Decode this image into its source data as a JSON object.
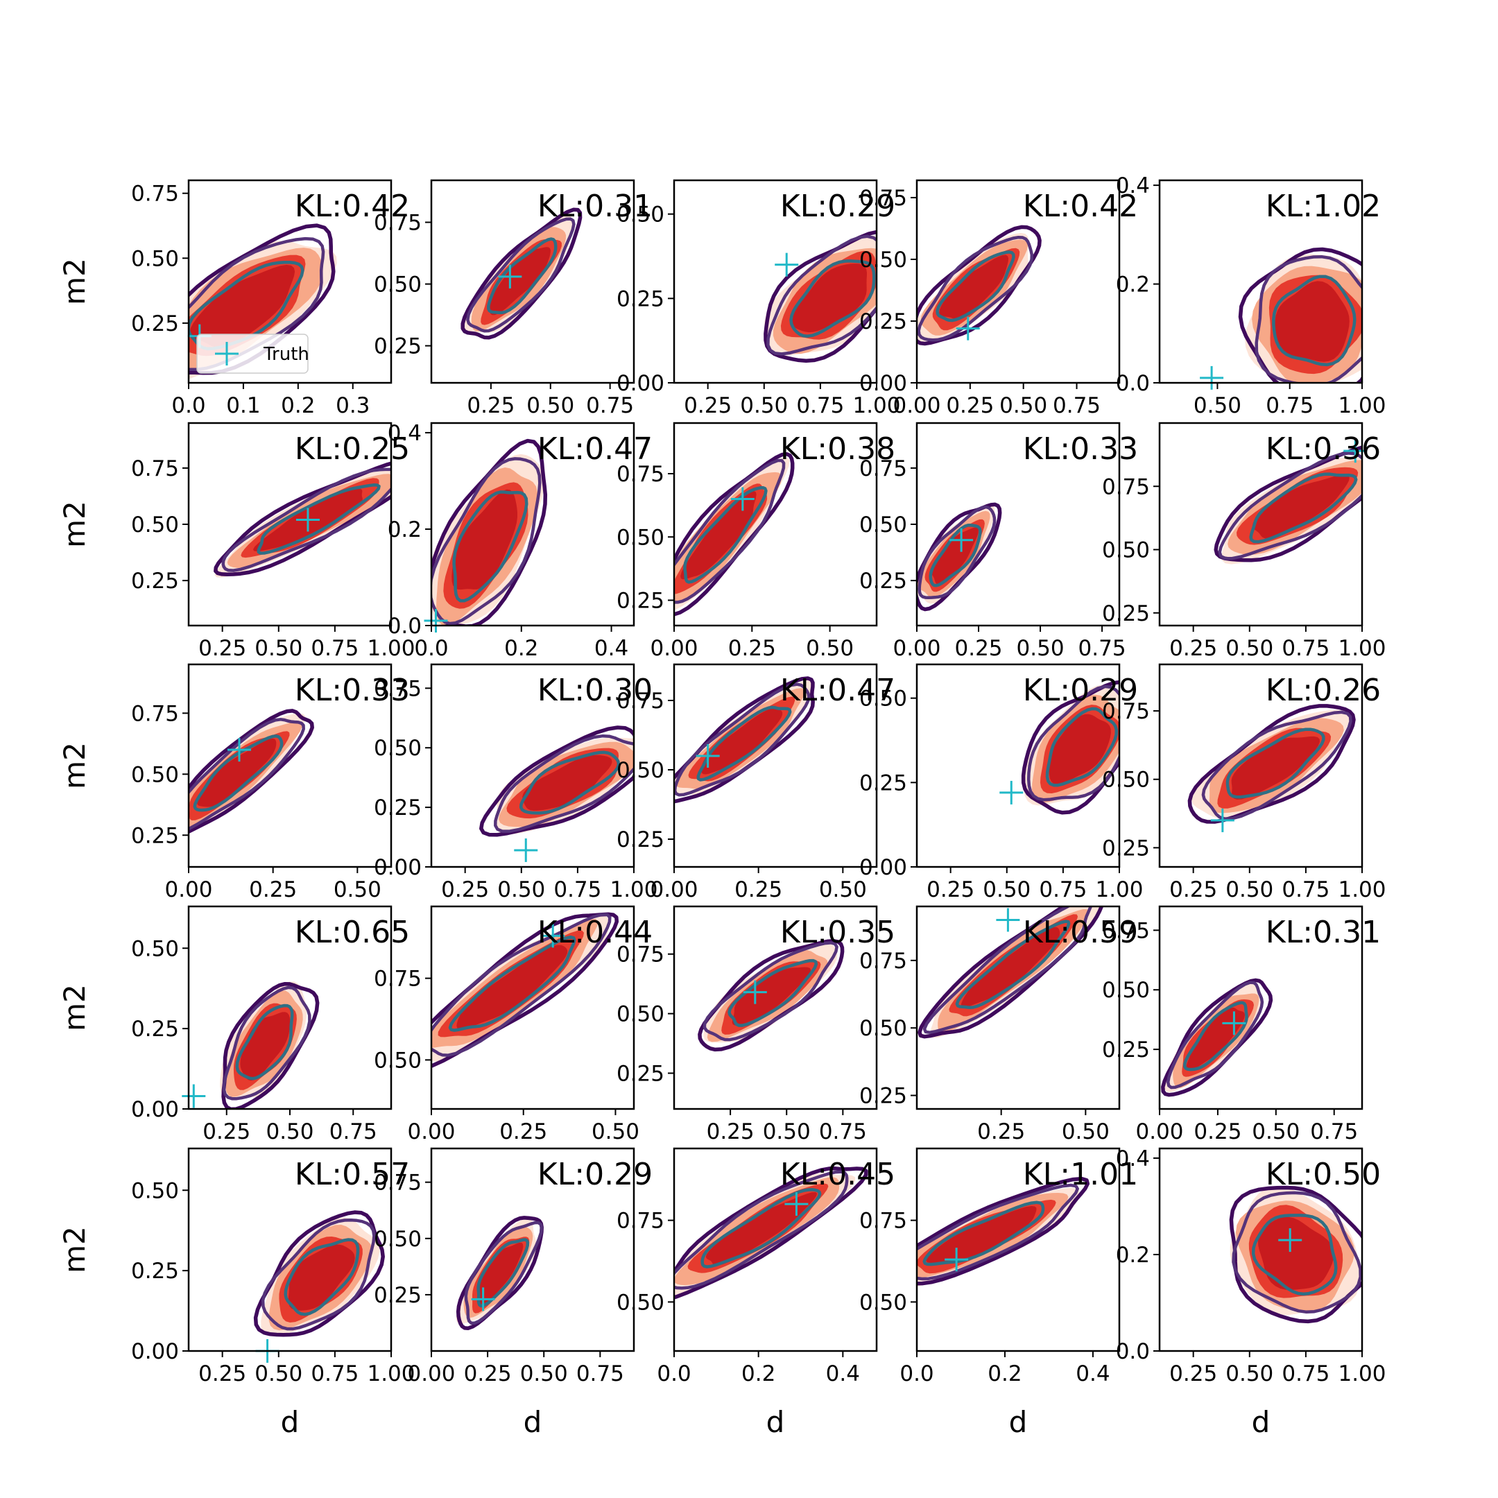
{
  "figure": {
    "legend": {
      "label": "Truth",
      "placement": "lower-left of first panel"
    },
    "colors": {
      "fill_levels": [
        "#fde4d8",
        "#f7a888",
        "#e63b2e",
        "#c81b1e"
      ],
      "contour_outer": "#3f0a5c",
      "contour_mid": "#55337a",
      "contour_inner": "#2f6f85",
      "truth_marker": "#22b9c8"
    }
  },
  "chart_data": [
    {
      "type": "contour",
      "panel": [
        1,
        1
      ],
      "annotation": "KL:0.42",
      "ylabel": "m2",
      "xlabel": "",
      "xticks": [
        "0.0",
        "0.1",
        "0.2",
        "0.3"
      ],
      "yticks": [
        "0.25",
        "0.50",
        "0.75"
      ],
      "xlim": [
        0,
        0.37
      ],
      "ylim": [
        0.02,
        0.8
      ],
      "truth": [
        0.02,
        0.2
      ],
      "center": [
        0.1,
        0.31
      ],
      "spread": [
        0.16,
        0.14
      ],
      "angle": 35,
      "legend": true
    },
    {
      "type": "contour",
      "panel": [
        1,
        2
      ],
      "annotation": "KL:0.31",
      "ylabel": "",
      "xlabel": "",
      "xticks": [
        "0.25",
        "0.50",
        "0.75"
      ],
      "yticks": [
        "0.25",
        "0.50",
        "0.75"
      ],
      "xlim": [
        0,
        0.85
      ],
      "ylim": [
        0.1,
        0.92
      ],
      "truth": [
        0.33,
        0.53
      ],
      "center": [
        0.37,
        0.52
      ],
      "spread": [
        0.27,
        0.08
      ],
      "angle": 48
    },
    {
      "type": "contour",
      "panel": [
        1,
        3
      ],
      "annotation": "KL:0.29",
      "ylabel": "",
      "xlabel": "",
      "xticks": [
        "0.25",
        "0.50",
        "0.75",
        "1.00"
      ],
      "yticks": [
        "0.00",
        "0.25",
        "0.50"
      ],
      "xlim": [
        0.1,
        1
      ],
      "ylim": [
        0,
        0.6
      ],
      "truth": [
        0.6,
        0.35
      ],
      "center": [
        0.8,
        0.25
      ],
      "spread": [
        0.3,
        0.1
      ],
      "angle": 40
    },
    {
      "type": "contour",
      "panel": [
        1,
        4
      ],
      "annotation": "KL:0.42",
      "ylabel": "",
      "xlabel": "",
      "xticks": [
        "0.00",
        "0.25",
        "0.50",
        "0.75"
      ],
      "yticks": [
        "0.00",
        "0.25",
        "0.50",
        "0.75"
      ],
      "xlim": [
        0,
        0.95
      ],
      "ylim": [
        0,
        0.82
      ],
      "truth": [
        0.24,
        0.22
      ],
      "center": [
        0.27,
        0.38
      ],
      "spread": [
        0.3,
        0.09
      ],
      "angle": 42
    },
    {
      "type": "contour",
      "panel": [
        1,
        5
      ],
      "annotation": "KL:1.02",
      "ylabel": "",
      "xlabel": "",
      "xticks": [
        "0.50",
        "0.75",
        "1.00"
      ],
      "yticks": [
        "0.0",
        "0.2",
        "0.4"
      ],
      "xlim": [
        0.3,
        1
      ],
      "ylim": [
        0,
        0.41
      ],
      "truth": [
        0.48,
        0.01
      ],
      "center": [
        0.83,
        0.12
      ],
      "spread": [
        0.2,
        0.11
      ],
      "angle": 70
    },
    {
      "type": "contour",
      "panel": [
        2,
        1
      ],
      "annotation": "KL:0.25",
      "ylabel": "m2",
      "xlabel": "",
      "xticks": [
        "0.25",
        "0.50",
        "0.75",
        "1.00"
      ],
      "yticks": [
        "0.25",
        "0.50",
        "0.75"
      ],
      "xlim": [
        0.1,
        1
      ],
      "ylim": [
        0.05,
        0.95
      ],
      "truth": [
        0.63,
        0.52
      ],
      "center": [
        0.65,
        0.52
      ],
      "spread": [
        0.4,
        0.08
      ],
      "angle": 28
    },
    {
      "type": "contour",
      "panel": [
        2,
        2
      ],
      "annotation": "KL:0.47",
      "ylabel": "",
      "xlabel": "",
      "xticks": [
        "0.0",
        "0.2",
        "0.4"
      ],
      "yticks": [
        "0.0",
        "0.2",
        "0.4"
      ],
      "xlim": [
        0,
        0.45
      ],
      "ylim": [
        0,
        0.42
      ],
      "truth": [
        0.01,
        0.01
      ],
      "center": [
        0.12,
        0.17
      ],
      "spread": [
        0.18,
        0.07
      ],
      "angle": 62
    },
    {
      "type": "contour",
      "panel": [
        2,
        3
      ],
      "annotation": "KL:0.38",
      "ylabel": "",
      "xlabel": "",
      "xticks": [
        "0.00",
        "0.25",
        "0.50"
      ],
      "yticks": [
        "0.25",
        "0.50",
        "0.75"
      ],
      "xlim": [
        0,
        0.65
      ],
      "ylim": [
        0.15,
        0.95
      ],
      "truth": [
        0.22,
        0.65
      ],
      "center": [
        0.15,
        0.5
      ],
      "spread": [
        0.26,
        0.08
      ],
      "angle": 50
    },
    {
      "type": "contour",
      "panel": [
        2,
        4
      ],
      "annotation": "KL:0.33",
      "ylabel": "",
      "xlabel": "",
      "xticks": [
        "0.00",
        "0.25",
        "0.50",
        "0.75"
      ],
      "yticks": [
        "0.25",
        "0.50",
        "0.75"
      ],
      "xlim": [
        0,
        0.82
      ],
      "ylim": [
        0.05,
        0.95
      ],
      "truth": [
        0.18,
        0.43
      ],
      "center": [
        0.15,
        0.36
      ],
      "spread": [
        0.2,
        0.08
      ],
      "angle": 52
    },
    {
      "type": "contour",
      "panel": [
        2,
        5
      ],
      "annotation": "KL:0.36",
      "ylabel": "",
      "xlabel": "",
      "xticks": [
        "0.25",
        "0.50",
        "0.75",
        "1.00"
      ],
      "yticks": [
        "0.25",
        "0.50",
        "0.75"
      ],
      "xlim": [
        0.1,
        1
      ],
      "ylim": [
        0.2,
        1
      ],
      "truth": [
        0.97,
        0.89
      ],
      "center": [
        0.72,
        0.67
      ],
      "spread": [
        0.35,
        0.1
      ],
      "angle": 30
    },
    {
      "type": "contour",
      "panel": [
        3,
        1
      ],
      "annotation": "KL:0.33",
      "ylabel": "m2",
      "xlabel": "",
      "xticks": [
        "0.00",
        "0.25",
        "0.50"
      ],
      "yticks": [
        "0.25",
        "0.50",
        "0.75"
      ],
      "xlim": [
        0,
        0.6
      ],
      "ylim": [
        0.12,
        0.95
      ],
      "truth": [
        0.15,
        0.6
      ],
      "center": [
        0.14,
        0.5
      ],
      "spread": [
        0.22,
        0.08
      ],
      "angle": 40
    },
    {
      "type": "contour",
      "panel": [
        3,
        2
      ],
      "annotation": "KL:0.30",
      "ylabel": "",
      "xlabel": "",
      "xticks": [
        "0.25",
        "0.50",
        "0.75",
        "1.00"
      ],
      "yticks": [
        "0.00",
        "0.25",
        "0.50",
        "0.75"
      ],
      "xlim": [
        0.1,
        1
      ],
      "ylim": [
        0,
        0.85
      ],
      "truth": [
        0.52,
        0.07
      ],
      "center": [
        0.7,
        0.35
      ],
      "spread": [
        0.32,
        0.11
      ],
      "angle": 28
    },
    {
      "type": "contour",
      "panel": [
        3,
        3
      ],
      "annotation": "KL:0.47",
      "ylabel": "",
      "xlabel": "",
      "xticks": [
        "0.00",
        "0.25",
        "0.50"
      ],
      "yticks": [
        "0.25",
        "0.50",
        "0.75"
      ],
      "xlim": [
        0,
        0.6
      ],
      "ylim": [
        0.15,
        0.88
      ],
      "truth": [
        0.1,
        0.55
      ],
      "center": [
        0.2,
        0.6
      ],
      "spread": [
        0.22,
        0.07
      ],
      "angle": 38
    },
    {
      "type": "contour",
      "panel": [
        3,
        4
      ],
      "annotation": "KL:0.29",
      "ylabel": "",
      "xlabel": "",
      "xticks": [
        "0.25",
        "0.50",
        "0.75",
        "1.00"
      ],
      "yticks": [
        "0.00",
        "0.25",
        "0.50"
      ],
      "xlim": [
        0.1,
        1
      ],
      "ylim": [
        0,
        0.6
      ],
      "truth": [
        0.52,
        0.22
      ],
      "center": [
        0.82,
        0.35
      ],
      "spread": [
        0.26,
        0.1
      ],
      "angle": 50
    },
    {
      "type": "contour",
      "panel": [
        3,
        5
      ],
      "annotation": "KL:0.26",
      "ylabel": "",
      "xlabel": "",
      "xticks": [
        "0.25",
        "0.50",
        "0.75",
        "1.00"
      ],
      "yticks": [
        "0.25",
        "0.50",
        "0.75"
      ],
      "xlim": [
        0.1,
        1
      ],
      "ylim": [
        0.18,
        0.92
      ],
      "truth": [
        0.38,
        0.35
      ],
      "center": [
        0.6,
        0.55
      ],
      "spread": [
        0.33,
        0.1
      ],
      "angle": 32
    },
    {
      "type": "contour",
      "panel": [
        4,
        1
      ],
      "annotation": "KL:0.65",
      "ylabel": "m2",
      "xlabel": "",
      "xticks": [
        "0.25",
        "0.50",
        "0.75"
      ],
      "yticks": [
        "0.00",
        "0.25",
        "0.50"
      ],
      "xlim": [
        0.1,
        0.9
      ],
      "ylim": [
        0,
        0.63
      ],
      "truth": [
        0.12,
        0.04
      ],
      "center": [
        0.4,
        0.2
      ],
      "spread": [
        0.22,
        0.08
      ],
      "angle": 58
    },
    {
      "type": "contour",
      "panel": [
        4,
        2
      ],
      "annotation": "KL:0.44",
      "ylabel": "",
      "xlabel": "",
      "xticks": [
        "0.00",
        "0.25",
        "0.50"
      ],
      "yticks": [
        "0.50",
        "0.75"
      ],
      "xlim": [
        0,
        0.55
      ],
      "ylim": [
        0.35,
        0.97
      ],
      "truth": [
        0.33,
        0.88
      ],
      "center": [
        0.22,
        0.72
      ],
      "spread": [
        0.27,
        0.07
      ],
      "angle": 36
    },
    {
      "type": "contour",
      "panel": [
        4,
        3
      ],
      "annotation": "KL:0.35",
      "ylabel": "",
      "xlabel": "",
      "xticks": [
        "0.25",
        "0.50",
        "0.75"
      ],
      "yticks": [
        "0.25",
        "0.50",
        "0.75"
      ],
      "xlim": [
        0,
        0.9
      ],
      "ylim": [
        0.1,
        0.95
      ],
      "truth": [
        0.36,
        0.59
      ],
      "center": [
        0.42,
        0.58
      ],
      "spread": [
        0.3,
        0.09
      ],
      "angle": 35
    },
    {
      "type": "contour",
      "panel": [
        4,
        4
      ],
      "annotation": "KL:0.59",
      "ylabel": "",
      "xlabel": "",
      "xticks": [
        "0.25",
        "0.50"
      ],
      "yticks": [
        "0.25",
        "0.50",
        "0.75"
      ],
      "xlim": [
        0,
        0.6
      ],
      "ylim": [
        0.2,
        0.95
      ],
      "truth": [
        0.27,
        0.9
      ],
      "center": [
        0.28,
        0.72
      ],
      "spread": [
        0.27,
        0.07
      ],
      "angle": 38
    },
    {
      "type": "contour",
      "panel": [
        4,
        5
      ],
      "annotation": "KL:0.31",
      "ylabel": "",
      "xlabel": "",
      "xticks": [
        "0.00",
        "0.25",
        "0.50",
        "0.75"
      ],
      "yticks": [
        "0.25",
        "0.50",
        "0.75"
      ],
      "xlim": [
        0,
        0.87
      ],
      "ylim": [
        0,
        0.85
      ],
      "truth": [
        0.32,
        0.36
      ],
      "center": [
        0.24,
        0.3
      ],
      "spread": [
        0.25,
        0.08
      ],
      "angle": 48
    },
    {
      "type": "contour",
      "panel": [
        5,
        1
      ],
      "annotation": "KL:0.57",
      "ylabel": "m2",
      "xlabel": "d",
      "xticks": [
        "0.25",
        "0.50",
        "0.75",
        "1.00"
      ],
      "yticks": [
        "0.00",
        "0.25",
        "0.50"
      ],
      "xlim": [
        0.1,
        1
      ],
      "ylim": [
        0,
        0.63
      ],
      "truth": [
        0.45,
        0.0
      ],
      "center": [
        0.68,
        0.23
      ],
      "spread": [
        0.27,
        0.1
      ],
      "angle": 45
    },
    {
      "type": "contour",
      "panel": [
        5,
        2
      ],
      "annotation": "KL:0.29",
      "ylabel": "",
      "xlabel": "d",
      "xticks": [
        "0.00",
        "0.25",
        "0.50",
        "0.75"
      ],
      "yticks": [
        "0.25",
        "0.50",
        "0.75"
      ],
      "xlim": [
        0,
        0.9
      ],
      "ylim": [
        0,
        0.9
      ],
      "truth": [
        0.23,
        0.23
      ],
      "center": [
        0.3,
        0.35
      ],
      "spread": [
        0.23,
        0.08
      ],
      "angle": 55
    },
    {
      "type": "contour",
      "panel": [
        5,
        3
      ],
      "annotation": "KL:0.45",
      "ylabel": "",
      "xlabel": "d",
      "xticks": [
        "0.0",
        "0.2",
        "0.4"
      ],
      "yticks": [
        "0.50",
        "0.75"
      ],
      "xlim": [
        0,
        0.48
      ],
      "ylim": [
        0.35,
        0.97
      ],
      "truth": [
        0.29,
        0.8
      ],
      "center": [
        0.2,
        0.72
      ],
      "spread": [
        0.22,
        0.06
      ],
      "angle": 32
    },
    {
      "type": "contour",
      "panel": [
        5,
        4
      ],
      "annotation": "KL:1.01",
      "ylabel": "",
      "xlabel": "d",
      "xticks": [
        "0.0",
        "0.2",
        "0.4"
      ],
      "yticks": [
        "0.50",
        "0.75"
      ],
      "xlim": [
        0,
        0.46
      ],
      "ylim": [
        0.35,
        0.97
      ],
      "truth": [
        0.09,
        0.63
      ],
      "center": [
        0.15,
        0.7
      ],
      "spread": [
        0.2,
        0.06
      ],
      "angle": 25
    },
    {
      "type": "contour",
      "panel": [
        5,
        5
      ],
      "annotation": "KL:0.50",
      "ylabel": "",
      "xlabel": "d",
      "xticks": [
        "0.25",
        "0.50",
        "0.75",
        "1.00"
      ],
      "yticks": [
        "0.0",
        "0.2",
        "0.4"
      ],
      "xlim": [
        0.1,
        1
      ],
      "ylim": [
        0,
        0.42
      ],
      "truth": [
        0.68,
        0.23
      ],
      "center": [
        0.7,
        0.2
      ],
      "spread": [
        0.22,
        0.12
      ],
      "angle": 50
    }
  ]
}
